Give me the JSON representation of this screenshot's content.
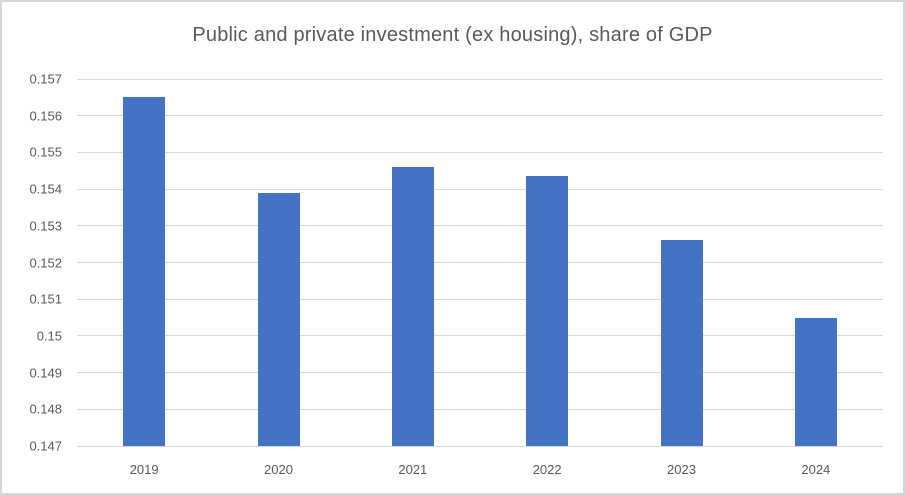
{
  "chart": {
    "title": "Public and private investment (ex housing), share of GDP"
  },
  "chart_data": {
    "type": "bar",
    "title": "Public and private investment (ex housing), share of GDP",
    "categories": [
      "2019",
      "2020",
      "2021",
      "2022",
      "2023",
      "2024"
    ],
    "values": [
      0.1565,
      0.1539,
      0.1546,
      0.15435,
      0.1526,
      0.1505
    ],
    "xlabel": "",
    "ylabel": "",
    "ylim": [
      0.147,
      0.157
    ],
    "ytick_step": 0.001,
    "ytick_labels": [
      "0.147",
      "0.148",
      "0.149",
      "0.15",
      "0.151",
      "0.152",
      "0.153",
      "0.154",
      "0.155",
      "0.156",
      "0.157"
    ],
    "grid": true,
    "legend_position": "none",
    "colors": {
      "bar": "#4472C4",
      "gridline": "#D9D9D9",
      "axis_line": "#D9D9D9",
      "text": "#595959",
      "background": "#FFFFFF",
      "border": "#D6D6D6"
    }
  }
}
